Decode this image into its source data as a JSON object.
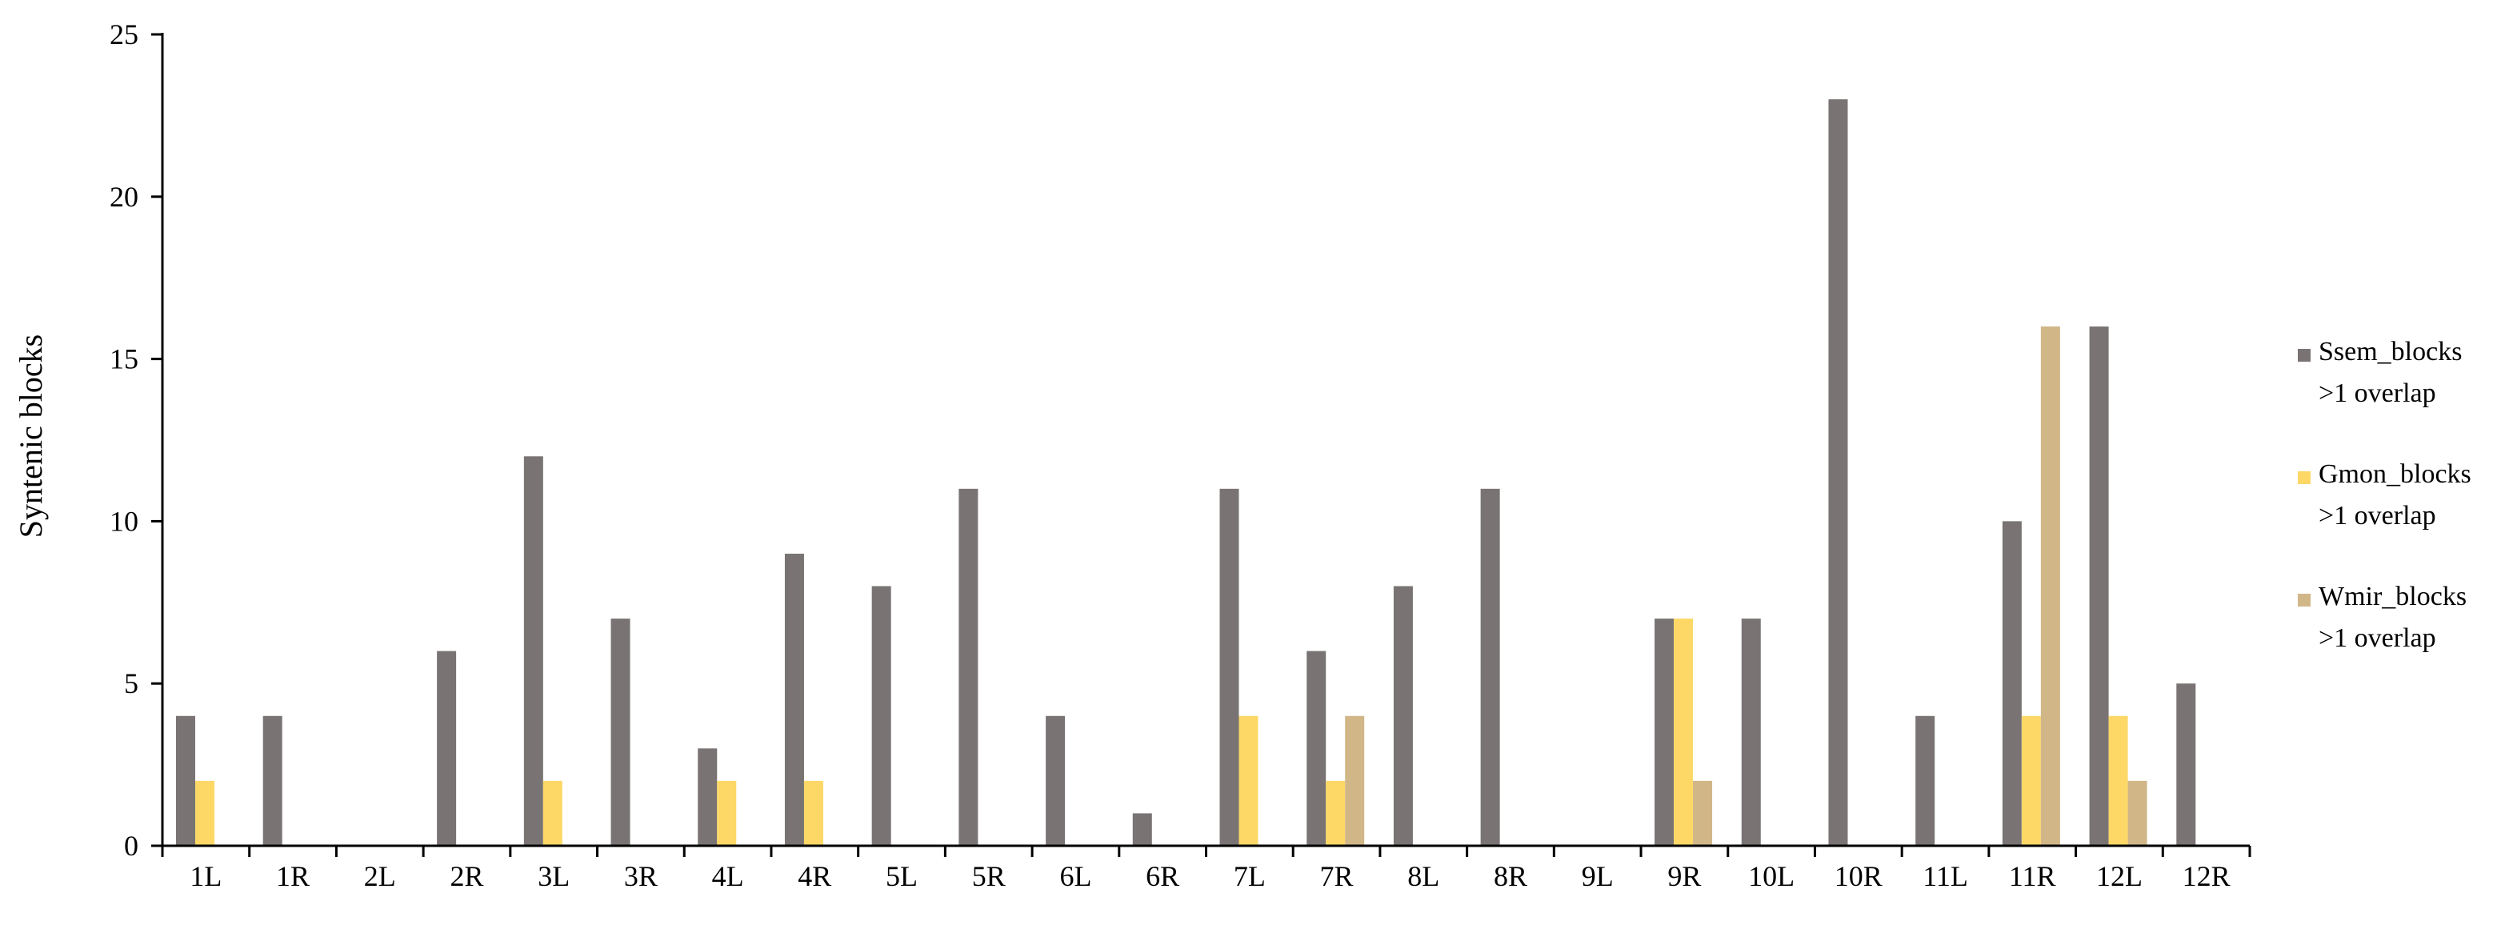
{
  "chart_data": {
    "type": "bar",
    "ylabel": "Syntenic blocks",
    "xlabel": "",
    "ylim": [
      0,
      25
    ],
    "yticks": [
      0,
      5,
      10,
      15,
      20,
      25
    ],
    "grid": false,
    "legend_position": "right",
    "categories": [
      "1L",
      "1R",
      "2L",
      "2R",
      "3L",
      "3R",
      "4L",
      "4R",
      "5L",
      "5R",
      "6L",
      "6R",
      "7L",
      "7R",
      "8L",
      "8R",
      "9L",
      "9R",
      "10L",
      "10R",
      "11L",
      "11R",
      "12L",
      "12R"
    ],
    "series": [
      {
        "name": "Ssem_blocks >1 overlap",
        "legend_lines": [
          "Ssem_blocks",
          ">1 overlap"
        ],
        "color": "#797473",
        "values": [
          4,
          4,
          0,
          6,
          12,
          7,
          3,
          9,
          8,
          11,
          4,
          1,
          11,
          6,
          8,
          11,
          0,
          7,
          7,
          23,
          4,
          10,
          16,
          5
        ]
      },
      {
        "name": "Gmon_blocks >1 overlap",
        "legend_lines": [
          "Gmon_blocks",
          ">1 overlap"
        ],
        "color": "#FDD867",
        "values": [
          2,
          0,
          0,
          0,
          2,
          0,
          2,
          2,
          0,
          0,
          0,
          0,
          4,
          2,
          0,
          0,
          0,
          7,
          0,
          0,
          0,
          4,
          4,
          0
        ]
      },
      {
        "name": "Wmir_blocks >1 overlap",
        "legend_lines": [
          "Wmir_blocks",
          ">1 overlap"
        ],
        "color": "#D1B688",
        "values": [
          0,
          0,
          0,
          0,
          0,
          0,
          0,
          0,
          0,
          0,
          0,
          0,
          0,
          4,
          0,
          0,
          0,
          2,
          0,
          0,
          0,
          16,
          2,
          0
        ]
      }
    ]
  }
}
